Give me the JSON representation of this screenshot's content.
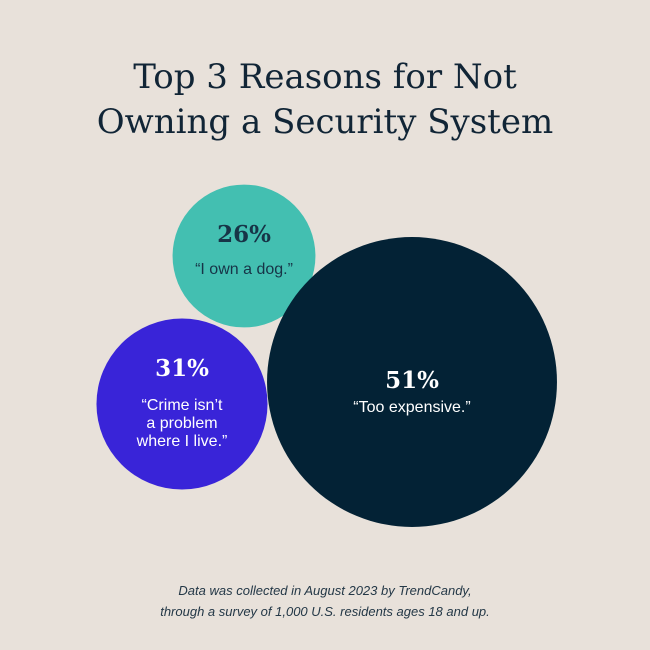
{
  "title": {
    "line1": "Top 3 Reasons for Not",
    "line2": "Owning a Security System"
  },
  "chart_data": {
    "type": "bubble",
    "items": [
      {
        "percent": 26,
        "label": "26%",
        "reason_lines": [
          "“I own a dog.”"
        ],
        "color": "#43bfb1",
        "text_color": "#173447"
      },
      {
        "percent": 31,
        "label": "31%",
        "reason_lines": [
          "“Crime isn’t",
          "a problem",
          "where I live.”"
        ],
        "color": "#3924d8",
        "text_color": "#ffffff"
      },
      {
        "percent": 51,
        "label": "51%",
        "reason_lines": [
          "“Too expensive.”"
        ],
        "color": "#032235",
        "text_color": "#ffffff"
      }
    ]
  },
  "footnote": {
    "line1": "Data was collected in August 2023 by TrendCandy,",
    "line2": "through a survey of 1,000 U.S. residents ages 18 and up."
  },
  "colors": {
    "background": "#e8e1da",
    "title": "#112536"
  }
}
